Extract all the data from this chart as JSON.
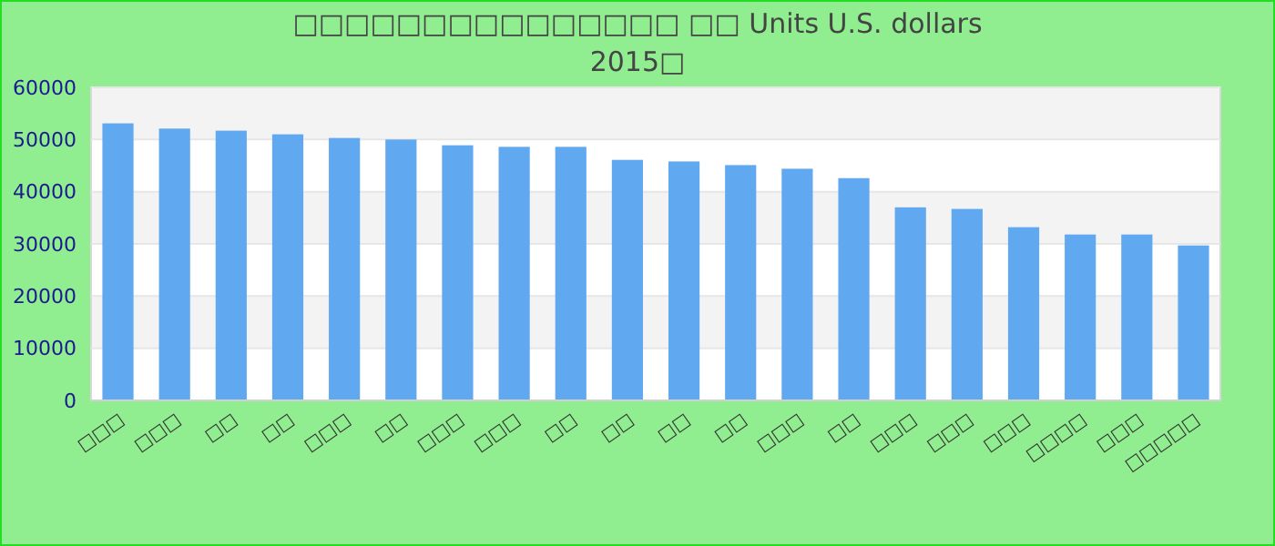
{
  "chart_data": {
    "type": "bar",
    "title": "□□□□□□□□□□□□□□□ □□ Units U.S. dollars",
    "subtitle": "2015□",
    "categories": [
      "□□□",
      "□□□",
      "□□",
      "□□",
      "□□□",
      "□□",
      "□□□",
      "□□□",
      "□□",
      "□□",
      "□□",
      "□□",
      "□□□",
      "□□",
      "□□□",
      "□□□",
      "□□□",
      "□□□□",
      "□□□",
      "□□□□□"
    ],
    "values": [
      53100,
      52100,
      51700,
      51000,
      50300,
      50000,
      48900,
      48600,
      48600,
      46100,
      45800,
      45100,
      44400,
      42600,
      37000,
      36700,
      33200,
      31800,
      31800,
      29700
    ],
    "color": "#60a8f0",
    "ylim": [
      0,
      60000
    ],
    "yticks": [
      0,
      10000,
      20000,
      30000,
      40000,
      50000,
      60000
    ],
    "grid": "y"
  }
}
